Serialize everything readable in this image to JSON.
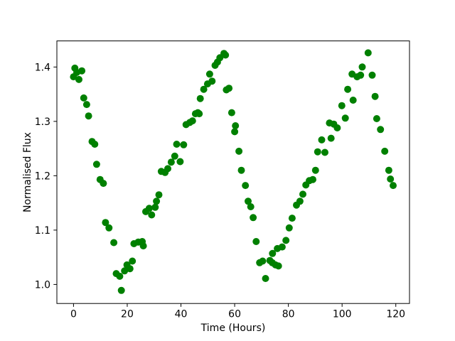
{
  "figure": {
    "background": "#ffffff",
    "spine_color": "#000000",
    "tick_color": "#000000",
    "text_color": "#000000"
  },
  "chart_data": {
    "type": "scatter",
    "title": "",
    "xlabel": "Time (Hours)",
    "ylabel": "Normalised Flux",
    "marker_color": "#008000",
    "marker_radius_px": 5,
    "grid": false,
    "legend": null,
    "xlim": [
      -6.2,
      125.1
    ],
    "ylim": [
      0.965,
      1.448
    ],
    "x_ticks": [
      0,
      20,
      40,
      60,
      80,
      100,
      120
    ],
    "x_tick_labels": [
      "0",
      "20",
      "40",
      "60",
      "80",
      "100",
      "120"
    ],
    "y_ticks": [
      1.0,
      1.1,
      1.2,
      1.3,
      1.4
    ],
    "y_tick_labels": [
      "1.0",
      "1.1",
      "1.2",
      "1.3",
      "1.4"
    ],
    "points": [
      [
        0.0,
        1.382
      ],
      [
        0.5,
        1.398
      ],
      [
        1.2,
        1.39
      ],
      [
        2.0,
        1.377
      ],
      [
        3.1,
        1.393
      ],
      [
        3.8,
        1.343
      ],
      [
        4.9,
        1.331
      ],
      [
        5.6,
        1.31
      ],
      [
        6.9,
        1.263
      ],
      [
        7.9,
        1.258
      ],
      [
        8.6,
        1.221
      ],
      [
        9.9,
        1.193
      ],
      [
        11.1,
        1.186
      ],
      [
        11.9,
        1.114
      ],
      [
        13.2,
        1.104
      ],
      [
        15.0,
        1.077
      ],
      [
        15.9,
        1.02
      ],
      [
        17.2,
        1.015
      ],
      [
        17.8,
        0.989
      ],
      [
        19.0,
        1.025
      ],
      [
        19.9,
        1.036
      ],
      [
        21.0,
        1.029
      ],
      [
        21.9,
        1.043
      ],
      [
        22.5,
        1.075
      ],
      [
        24.1,
        1.078
      ],
      [
        25.6,
        1.079
      ],
      [
        26.0,
        1.071
      ],
      [
        26.9,
        1.134
      ],
      [
        28.2,
        1.14
      ],
      [
        29.1,
        1.128
      ],
      [
        30.4,
        1.142
      ],
      [
        30.9,
        1.153
      ],
      [
        31.8,
        1.165
      ],
      [
        32.7,
        1.208
      ],
      [
        34.1,
        1.206
      ],
      [
        35.1,
        1.213
      ],
      [
        36.4,
        1.225
      ],
      [
        37.7,
        1.236
      ],
      [
        38.4,
        1.258
      ],
      [
        39.7,
        1.226
      ],
      [
        41.0,
        1.257
      ],
      [
        41.9,
        1.294
      ],
      [
        43.3,
        1.298
      ],
      [
        44.3,
        1.301
      ],
      [
        45.4,
        1.314
      ],
      [
        46.3,
        1.316
      ],
      [
        46.8,
        1.314
      ],
      [
        47.2,
        1.342
      ],
      [
        48.5,
        1.359
      ],
      [
        49.9,
        1.369
      ],
      [
        50.7,
        1.387
      ],
      [
        51.6,
        1.374
      ],
      [
        52.7,
        1.403
      ],
      [
        53.6,
        1.409
      ],
      [
        54.5,
        1.417
      ],
      [
        56.0,
        1.425
      ],
      [
        56.6,
        1.422
      ],
      [
        56.9,
        1.358
      ],
      [
        57.9,
        1.361
      ],
      [
        58.9,
        1.316
      ],
      [
        60.0,
        1.281
      ],
      [
        60.3,
        1.292
      ],
      [
        61.6,
        1.245
      ],
      [
        62.5,
        1.21
      ],
      [
        64.0,
        1.182
      ],
      [
        65.0,
        1.153
      ],
      [
        66.0,
        1.143
      ],
      [
        66.9,
        1.123
      ],
      [
        68.0,
        1.079
      ],
      [
        69.3,
        1.04
      ],
      [
        70.4,
        1.043
      ],
      [
        71.5,
        1.011
      ],
      [
        73.1,
        1.044
      ],
      [
        74.0,
        1.04
      ],
      [
        74.1,
        1.057
      ],
      [
        75.2,
        1.036
      ],
      [
        75.9,
        1.066
      ],
      [
        76.3,
        1.034
      ],
      [
        77.7,
        1.069
      ],
      [
        79.1,
        1.081
      ],
      [
        80.3,
        1.104
      ],
      [
        81.4,
        1.122
      ],
      [
        83.0,
        1.146
      ],
      [
        84.3,
        1.153
      ],
      [
        85.4,
        1.166
      ],
      [
        86.5,
        1.183
      ],
      [
        87.8,
        1.191
      ],
      [
        89.1,
        1.193
      ],
      [
        90.1,
        1.21
      ],
      [
        90.9,
        1.244
      ],
      [
        92.4,
        1.266
      ],
      [
        93.6,
        1.243
      ],
      [
        95.3,
        1.297
      ],
      [
        95.9,
        1.269
      ],
      [
        96.9,
        1.295
      ],
      [
        98.2,
        1.288
      ],
      [
        99.9,
        1.329
      ],
      [
        101.2,
        1.306
      ],
      [
        102.1,
        1.359
      ],
      [
        103.7,
        1.387
      ],
      [
        104.1,
        1.339
      ],
      [
        105.6,
        1.382
      ],
      [
        106.9,
        1.385
      ],
      [
        107.5,
        1.4
      ],
      [
        109.7,
        1.426
      ],
      [
        111.2,
        1.385
      ],
      [
        112.3,
        1.346
      ],
      [
        112.9,
        1.305
      ],
      [
        114.3,
        1.285
      ],
      [
        115.9,
        1.245
      ],
      [
        117.4,
        1.21
      ],
      [
        118.0,
        1.194
      ],
      [
        119.0,
        1.182
      ]
    ]
  }
}
